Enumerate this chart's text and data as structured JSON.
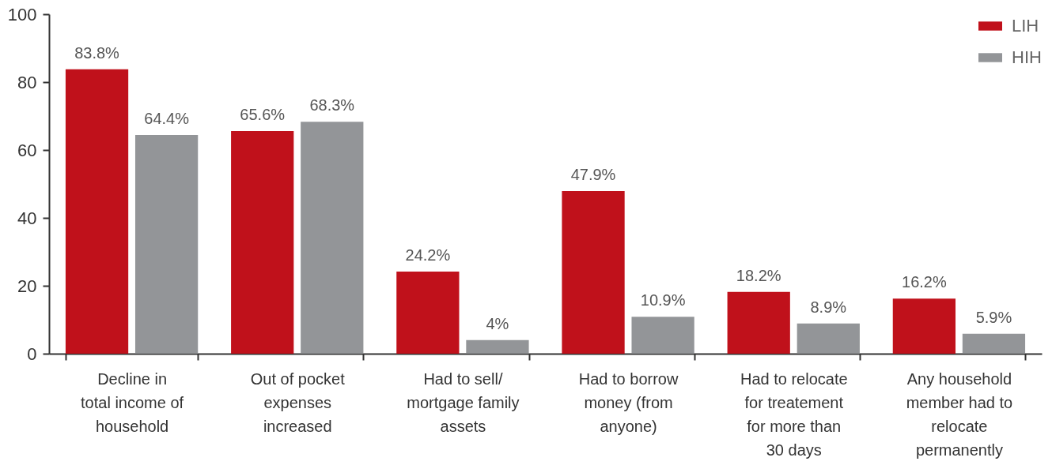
{
  "chart_data": {
    "type": "bar",
    "categories": [
      "Decline in total income of household",
      "Out of pocket expenses increased",
      "Had to sell/ mortgage family assets",
      "Had to borrow money (from anyone)",
      "Had to relocate for treatement for more than 30 days",
      "Any household member had to relocate permanently"
    ],
    "series": [
      {
        "name": "LIH",
        "color": "#c0111b",
        "values": [
          83.8,
          65.6,
          24.2,
          47.9,
          18.2,
          16.2
        ],
        "value_labels": [
          "83.8%",
          "65.6%",
          "24.2%",
          "47.9%",
          "18.2%",
          "16.2%"
        ]
      },
      {
        "name": "HIH",
        "color": "#939598",
        "values": [
          64.4,
          68.3,
          4,
          10.9,
          8.9,
          5.9
        ],
        "value_labels": [
          "64.4%",
          "68.3%",
          "4%",
          "10.9%",
          "8.9%",
          "5.9%"
        ]
      }
    ],
    "ylim": [
      0,
      100
    ],
    "yticks": [
      0,
      20,
      40,
      60,
      80,
      100
    ],
    "grid": false,
    "legend": "top right"
  }
}
